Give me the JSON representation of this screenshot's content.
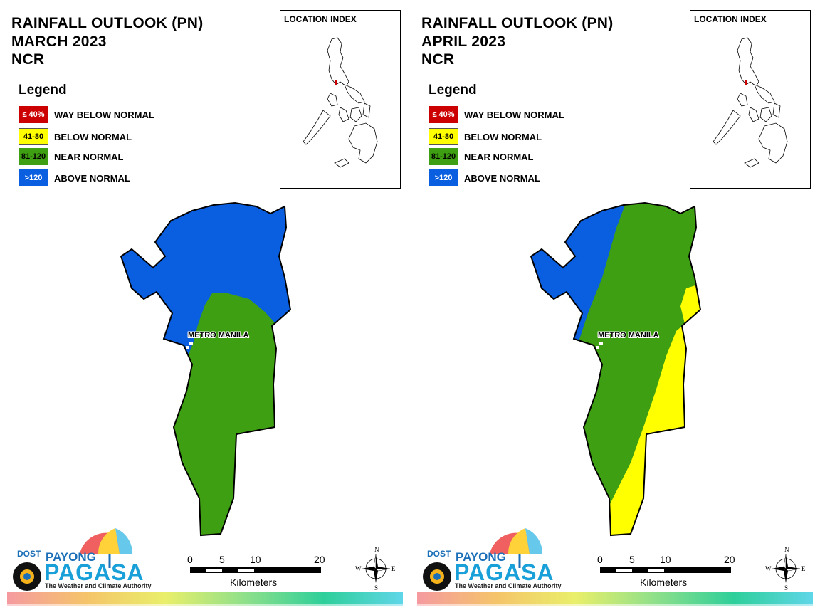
{
  "colors": {
    "way_below": "#cc0000",
    "below": "#ffff00",
    "near": "#3e9f12",
    "above": "#0a5ee0",
    "outline": "#000000"
  },
  "legend_items": [
    {
      "code": "≤ 40%",
      "label": "WAY BELOW NORMAL",
      "color": "#cc0000",
      "text_color": "#ffffff"
    },
    {
      "code": "41-80",
      "label": "BELOW NORMAL",
      "color": "#ffff00",
      "text_color": "#000000"
    },
    {
      "code": "81-120",
      "label": "NEAR NORMAL",
      "color": "#3e9f12",
      "text_color": "#000000"
    },
    {
      "code": ">120",
      "label": "ABOVE NORMAL",
      "color": "#0a5ee0",
      "text_color": "#ffffff"
    }
  ],
  "panels": [
    {
      "title": "RAINFALL OUTLOOK (PN)",
      "period": "MARCH 2023",
      "region": "NCR",
      "legend_title": "Legend",
      "location_index_title": "LOCATION INDEX",
      "city_label": "METRO MANILA",
      "zones_present": [
        "ABOVE NORMAL",
        "NEAR NORMAL"
      ]
    },
    {
      "title": "RAINFALL OUTLOOK (PN)",
      "period": "APRIL 2023",
      "region": "NCR",
      "legend_title": "Legend",
      "location_index_title": "LOCATION INDEX",
      "city_label": "METRO MANILA",
      "zones_present": [
        "ABOVE NORMAL",
        "NEAR NORMAL",
        "BELOW NORMAL"
      ]
    }
  ],
  "scale_bar": {
    "ticks": [
      "0",
      "5",
      "10",
      "20"
    ],
    "unit": "Kilometers"
  },
  "compass": {
    "n": "N",
    "s": "S",
    "e": "E",
    "w": "W"
  },
  "logo": {
    "dost": "DOST",
    "payong": "PAYONG",
    "pagasa": "PAGASA",
    "tagline": "The Weather and Climate Authority"
  }
}
